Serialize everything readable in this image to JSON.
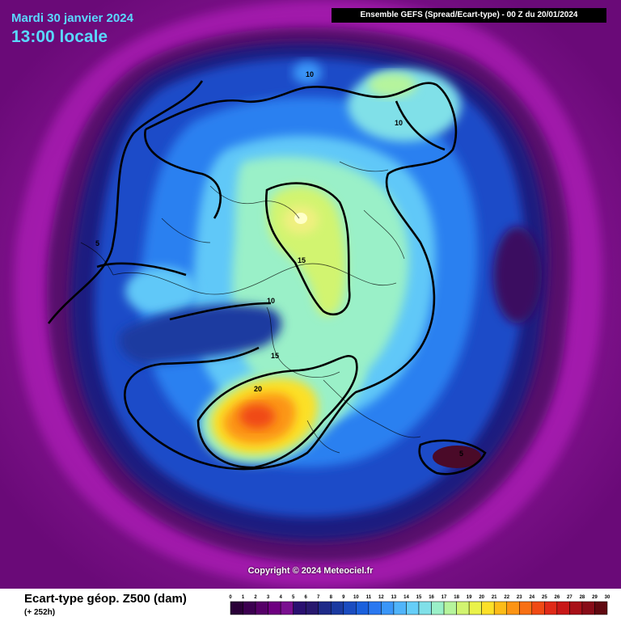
{
  "header": {
    "date": "Mardi 30 janvier 2024",
    "local_time": "13:00 locale",
    "run_info": "Ensemble GEFS  (Spread/Ecart-type) - 00 Z du 20/01/2024"
  },
  "copyright": "Copyright © 2024 Meteociel.fr",
  "footer": {
    "variable": "Ecart-type géop. Z500 (dam)",
    "lead_time": "(+ 252h)"
  },
  "legend": {
    "ticks": [
      "0",
      "1",
      "2",
      "3",
      "4",
      "5",
      "6",
      "7",
      "8",
      "9",
      "10",
      "11",
      "12",
      "13",
      "14",
      "15",
      "16",
      "17",
      "18",
      "19",
      "20",
      "21",
      "22",
      "23",
      "24",
      "25",
      "26",
      "27",
      "28",
      "29",
      "30"
    ],
    "colors": [
      "#2a0038",
      "#3c0050",
      "#560068",
      "#6e0080",
      "#7a1090",
      "#2a1070",
      "#28186e",
      "#1e2a88",
      "#1a3aa0",
      "#1a4cc0",
      "#1a60dc",
      "#2a78f0",
      "#3a96f8",
      "#50b4fa",
      "#66cef8",
      "#80e0e8",
      "#9af0c8",
      "#b6f49c",
      "#d2f470",
      "#eaf24a",
      "#fce028",
      "#fcbc18",
      "#fc9414",
      "#f87014",
      "#f04a14",
      "#e02a18",
      "#c81818",
      "#a81018",
      "#880c18",
      "#600810",
      "#400408"
    ]
  },
  "contour_labels": [
    "10",
    "10",
    "5",
    "15",
    "10",
    "15",
    "20",
    "5"
  ]
}
